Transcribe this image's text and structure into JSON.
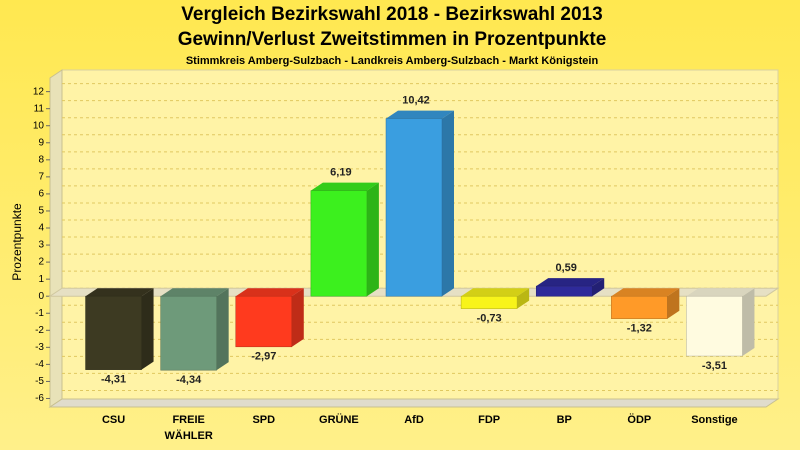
{
  "chart_data": {
    "type": "bar3d",
    "title": "Vergleich Bezirkswahl 2018 - Bezirkswahl 2013",
    "subtitle": "Gewinn/Verlust Zweitstimmen in Prozentpunkte",
    "caption": "Stimmkreis Amberg-Sulzbach - Landkreis Amberg-Sulzbach - Markt Königstein",
    "ylabel": "Prozentpunkte",
    "categories": [
      "CSU",
      "FREIE WÄHLER",
      "SPD",
      "GRÜNE",
      "AfD",
      "FDP",
      "BP",
      "ÖDP",
      "Sonstige"
    ],
    "values": [
      -4.31,
      -4.34,
      -2.97,
      6.19,
      10.42,
      -0.73,
      0.59,
      -1.32,
      -3.51
    ],
    "value_labels": [
      "-4,31",
      "-4,34",
      "-2,97",
      "6,19",
      "10,42",
      "-0,73",
      "0,59",
      "-1,32",
      "-3,51"
    ],
    "colors": [
      "#3d3a22",
      "#6e9a7a",
      "#ff3a1e",
      "#3cf01e",
      "#3a9ee0",
      "#f8f41a",
      "#2e2a9a",
      "#ff9a28",
      "#fffbe0"
    ],
    "ylim": [
      -6.5,
      12.8
    ],
    "yticks": [
      -6,
      -5,
      -4,
      -3,
      -2,
      -1,
      0,
      1,
      2,
      3,
      4,
      5,
      6,
      7,
      8,
      9,
      10,
      11,
      12
    ],
    "grid": true
  }
}
